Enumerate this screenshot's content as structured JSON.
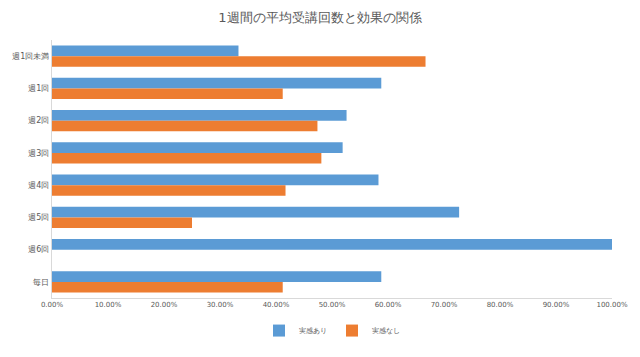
{
  "chart_data": {
    "type": "bar",
    "orientation": "horizontal",
    "title": "1週間の平均受講回数と効果の関係",
    "categories": [
      "週1回未満",
      "週1回",
      "週2回",
      "週3回",
      "週4回",
      "週5回",
      "週6回",
      "毎日"
    ],
    "series": [
      {
        "name": "実感あり",
        "color": "#5b9bd5",
        "values": [
          33.3,
          58.8,
          52.6,
          51.9,
          58.3,
          72.7,
          100,
          58.8
        ]
      },
      {
        "name": "実感なし",
        "color": "#ed7d31",
        "values": [
          66.7,
          41.2,
          47.4,
          48.1,
          41.7,
          25.0,
          0,
          41.2
        ]
      }
    ],
    "xlim": [
      0,
      100
    ],
    "xticks": [
      {
        "value": 0,
        "label": "0.00%"
      },
      {
        "value": 10,
        "label": "10.00%"
      },
      {
        "value": 20,
        "label": "20.00%"
      },
      {
        "value": 30,
        "label": "30.00%"
      },
      {
        "value": 40,
        "label": "40.00%"
      },
      {
        "value": 50,
        "label": "50.00%"
      },
      {
        "value": 60,
        "label": "60.00%"
      },
      {
        "value": 70,
        "label": "70.00%"
      },
      {
        "value": 80,
        "label": "80.00%"
      },
      {
        "value": 90,
        "label": "90.00%"
      },
      {
        "value": 100,
        "label": "100.00%"
      }
    ],
    "grid": false,
    "legend": "bottom"
  }
}
